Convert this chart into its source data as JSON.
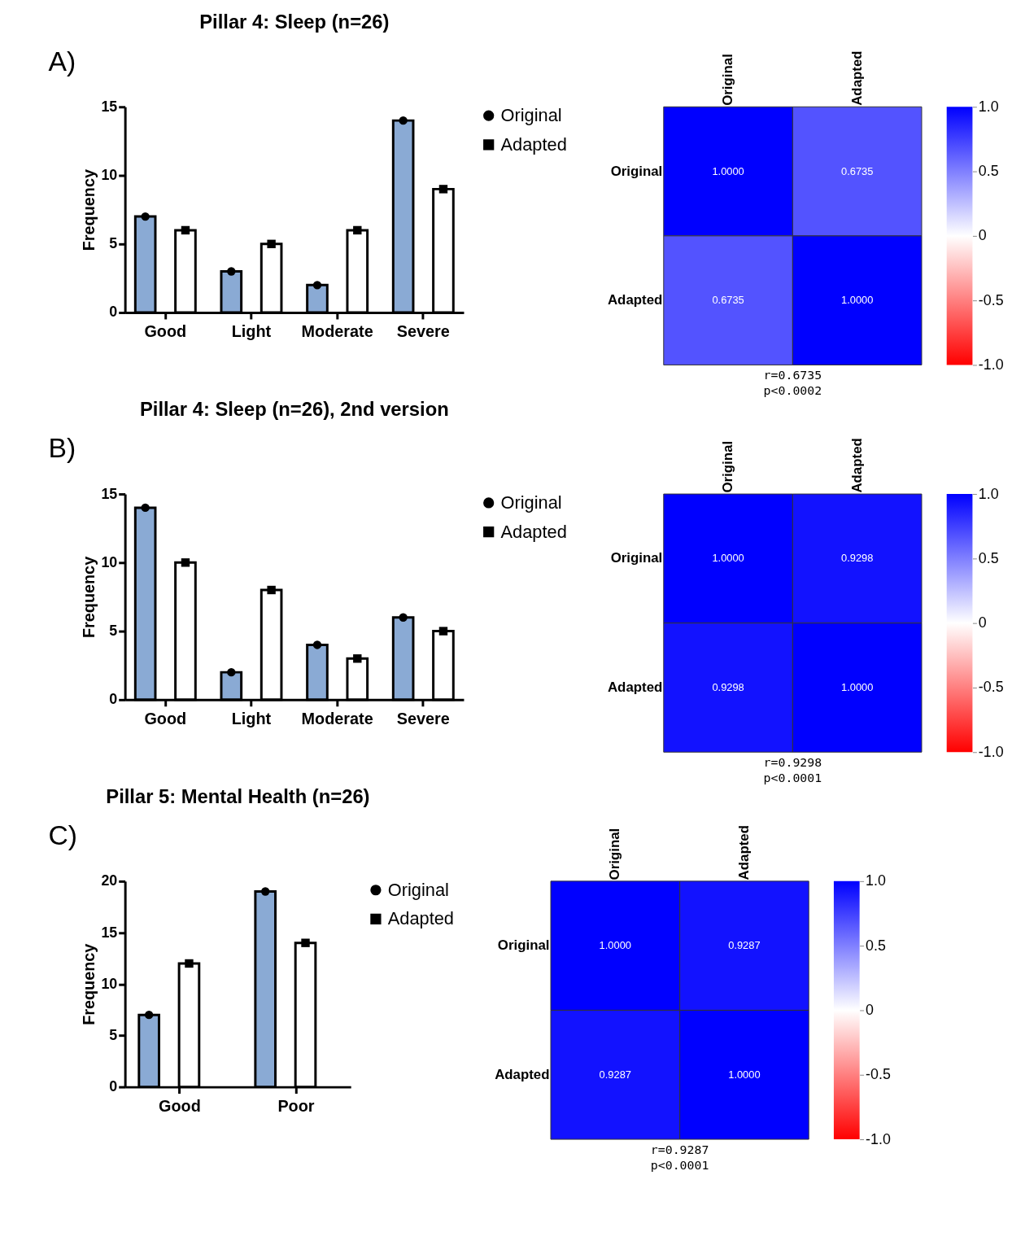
{
  "chart_data": [
    {
      "type": "bar",
      "title": "Pillar 4: Sleep (n=26)",
      "ylabel": "Frequency",
      "categories": [
        "Good",
        "Light",
        "Moderate",
        "Severe"
      ],
      "series": [
        {
          "color": "#8aaad4",
          "values": [
            7,
            3,
            2,
            14
          ]
        },
        {
          "color": "#ffffff",
          "values": [
            6,
            5,
            6,
            9
          ]
        },
        {
          "type": "scatter",
          "name": "Original",
          "color": "#000000",
          "marker": "circle",
          "x": [
            "Good",
            "Light",
            "Moderate",
            "Severe"
          ],
          "values": [
            7,
            3,
            2,
            14
          ]
        },
        {
          "type": "scatter",
          "name": "Adapted",
          "color": "#000000",
          "marker": "square",
          "x": [
            "Good",
            "Light",
            "Moderate",
            "Severe"
          ],
          "values": [
            6,
            5,
            6,
            9
          ]
        }
      ],
      "ylim": [
        0,
        15
      ],
      "yticks": [
        0,
        5,
        10,
        15
      ],
      "legend": "top right",
      "annotations": [
        "A)"
      ]
    },
    {
      "type": "heatmap",
      "categories": [
        "Original",
        "Adapted"
      ],
      "y_categories": [
        "Original",
        "Adapted"
      ],
      "cells": [
        [
          1,
          0.6735
        ],
        [
          0.6735,
          1
        ]
      ],
      "cell_labels": [
        [
          "1.0000",
          "0.6735"
        ],
        [
          "0.6735",
          "1.0000"
        ]
      ],
      "clim": [
        -1,
        1
      ],
      "cticks": [
        {
          "value": -1,
          "label": "-1.0"
        },
        {
          "value": -0.5,
          "label": "-0.5"
        },
        0,
        {
          "value": 0.5,
          "label": "0.5"
        },
        {
          "value": 1,
          "label": "1.0"
        }
      ],
      "annotations": [
        "r=0.6735",
        "p<0.0002"
      ]
    },
    {
      "type": "bar",
      "title": "Pillar 4: Sleep (n=26), 2nd version",
      "ylabel": "Frequency",
      "categories": [
        "Good",
        "Light",
        "Moderate",
        "Severe"
      ],
      "series": [
        {
          "color": "#8aaad4",
          "values": [
            14,
            2,
            4,
            6
          ]
        },
        {
          "color": "#ffffff",
          "values": [
            10,
            8,
            3,
            5
          ]
        },
        {
          "type": "scatter",
          "name": "Original",
          "color": "#000000",
          "marker": "circle",
          "x": [
            "Good",
            "Light",
            "Moderate",
            "Severe"
          ],
          "values": [
            14,
            2,
            4,
            6
          ]
        },
        {
          "type": "scatter",
          "name": "Adapted",
          "color": "#000000",
          "marker": "square",
          "x": [
            "Good",
            "Light",
            "Moderate",
            "Severe"
          ],
          "values": [
            10,
            8,
            3,
            5
          ]
        }
      ],
      "ylim": [
        0,
        15
      ],
      "yticks": [
        0,
        5,
        10,
        15
      ],
      "legend": "top right",
      "annotations": [
        "B)"
      ]
    },
    {
      "type": "heatmap",
      "categories": [
        "Original",
        "Adapted"
      ],
      "y_categories": [
        "Original",
        "Adapted"
      ],
      "cells": [
        [
          1,
          0.9298
        ],
        [
          0.9298,
          1
        ]
      ],
      "cell_labels": [
        [
          "1.0000",
          "0.9298"
        ],
        [
          "0.9298",
          "1.0000"
        ]
      ],
      "clim": [
        -1,
        1
      ],
      "cticks": [
        {
          "value": -1,
          "label": "-1.0"
        },
        {
          "value": -0.5,
          "label": "-0.5"
        },
        0,
        {
          "value": 0.5,
          "label": "0.5"
        },
        {
          "value": 1,
          "label": "1.0"
        }
      ],
      "annotations": [
        "r=0.9298",
        "p<0.0001"
      ]
    },
    {
      "type": "bar",
      "title": "Pillar 5: Mental Health (n=26)",
      "ylabel": "Frequency",
      "categories": [
        "Good",
        "Poor"
      ],
      "series": [
        {
          "color": "#8aaad4",
          "values": [
            7,
            19
          ]
        },
        {
          "color": "#ffffff",
          "values": [
            12,
            14
          ]
        },
        {
          "type": "scatter",
          "name": "Original",
          "color": "#000000",
          "marker": "circle",
          "x": [
            "Good",
            "Poor"
          ],
          "values": [
            7,
            19
          ]
        },
        {
          "type": "scatter",
          "name": "Adapted",
          "color": "#000000",
          "marker": "square",
          "x": [
            "Good",
            "Poor"
          ],
          "values": [
            12,
            14
          ]
        }
      ],
      "ylim": [
        0,
        20
      ],
      "yticks": [
        0,
        5,
        10,
        15,
        20
      ],
      "legend": "top right",
      "annotations": [
        "C)"
      ]
    },
    {
      "type": "heatmap",
      "categories": [
        "Original",
        "Adapted"
      ],
      "y_categories": [
        "Original",
        "Adapted"
      ],
      "cells": [
        [
          1,
          0.9287
        ],
        [
          0.9287,
          1
        ]
      ],
      "cell_labels": [
        [
          "1.0000",
          "0.9287"
        ],
        [
          "0.9287",
          "1.0000"
        ]
      ],
      "clim": [
        -1,
        1
      ],
      "cticks": [
        {
          "value": -1,
          "label": "-1.0"
        },
        {
          "value": -0.5,
          "label": "-0.5"
        },
        0,
        {
          "value": 0.5,
          "label": "0.5"
        },
        {
          "value": 1,
          "label": "1.0"
        }
      ],
      "annotations": [
        "r=0.9287",
        "p<0.0001"
      ]
    }
  ]
}
